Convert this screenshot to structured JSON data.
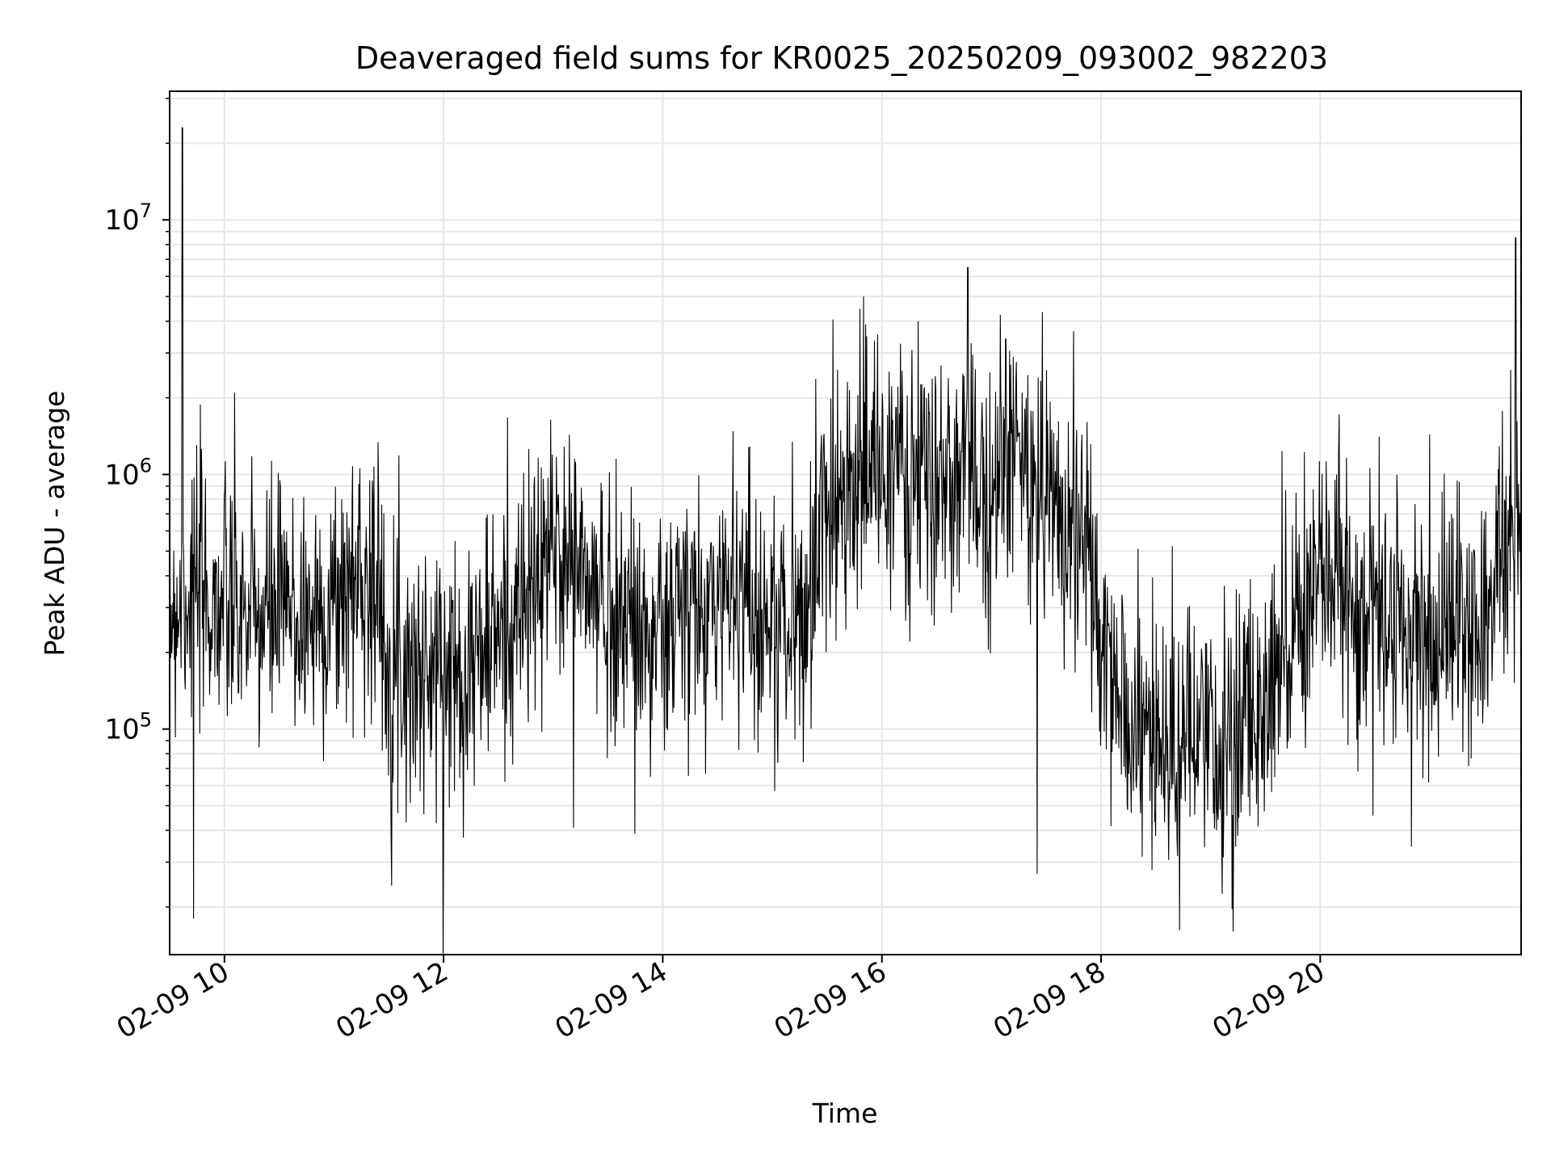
{
  "chart_data": {
    "type": "line",
    "title": "Deaveraged field sums for KR0025_20250209_093002_982203",
    "xlabel": "Time",
    "ylabel": "Peak ADU - average",
    "yscale": "log",
    "xlim": [
      "2025-02-09 09:30",
      "2025-02-09 21:50"
    ],
    "ylim": [
      13000,
      32000000
    ],
    "grid": true,
    "line_color": "#000000",
    "x_ticks": [
      "02-09 10",
      "02-09 12",
      "02-09 14",
      "02-09 16",
      "02-09 18",
      "02-09 20"
    ],
    "y_ticks": [
      {
        "value": 100000,
        "base": "10",
        "exp": "5"
      },
      {
        "value": 1000000,
        "base": "10",
        "exp": "6"
      },
      {
        "value": 10000000,
        "base": "10",
        "exp": "7"
      }
    ],
    "series": [
      {
        "x": [
          "2025-02-09 09:30",
          "2025-02-09 09:40",
          "2025-02-09 09:50",
          "2025-02-09 10:00",
          "2025-02-09 10:10",
          "2025-02-09 10:20",
          "2025-02-09 10:30",
          "2025-02-09 10:40",
          "2025-02-09 10:50",
          "2025-02-09 11:00",
          "2025-02-09 11:10",
          "2025-02-09 11:20",
          "2025-02-09 11:30",
          "2025-02-09 11:40",
          "2025-02-09 11:50",
          "2025-02-09 12:00",
          "2025-02-09 12:10",
          "2025-02-09 12:20",
          "2025-02-09 12:30",
          "2025-02-09 12:40",
          "2025-02-09 12:50",
          "2025-02-09 13:00",
          "2025-02-09 13:10",
          "2025-02-09 13:20",
          "2025-02-09 13:30",
          "2025-02-09 13:40",
          "2025-02-09 13:50",
          "2025-02-09 14:00",
          "2025-02-09 14:10",
          "2025-02-09 14:20",
          "2025-02-09 14:30",
          "2025-02-09 14:40",
          "2025-02-09 14:50",
          "2025-02-09 15:00",
          "2025-02-09 15:10",
          "2025-02-09 15:20",
          "2025-02-09 15:30",
          "2025-02-09 15:40",
          "2025-02-09 15:50",
          "2025-02-09 16:00",
          "2025-02-09 16:10",
          "2025-02-09 16:20",
          "2025-02-09 16:30",
          "2025-02-09 16:40",
          "2025-02-09 16:50",
          "2025-02-09 17:00",
          "2025-02-09 17:10",
          "2025-02-09 17:20",
          "2025-02-09 17:30",
          "2025-02-09 17:40",
          "2025-02-09 17:50",
          "2025-02-09 18:00",
          "2025-02-09 18:10",
          "2025-02-09 18:20",
          "2025-02-09 18:30",
          "2025-02-09 18:40",
          "2025-02-09 18:50",
          "2025-02-09 19:00",
          "2025-02-09 19:10",
          "2025-02-09 19:20",
          "2025-02-09 19:30",
          "2025-02-09 19:40",
          "2025-02-09 19:50",
          "2025-02-09 20:00",
          "2025-02-09 20:10",
          "2025-02-09 20:20",
          "2025-02-09 20:30",
          "2025-02-09 20:40",
          "2025-02-09 20:50",
          "2025-02-09 21:00",
          "2025-02-09 21:10",
          "2025-02-09 21:20",
          "2025-02-09 21:30",
          "2025-02-09 21:40",
          "2025-02-09 21:50"
        ],
        "y": [
          300000,
          350000,
          320000,
          300000,
          280000,
          260000,
          300000,
          270000,
          280000,
          300000,
          380000,
          420000,
          200000,
          180000,
          160000,
          170000,
          180000,
          200000,
          230000,
          280000,
          350000,
          520000,
          480000,
          350000,
          300000,
          280000,
          240000,
          220000,
          300000,
          260000,
          320000,
          420000,
          300000,
          250000,
          260000,
          300000,
          800000,
          1000000,
          900000,
          1100000,
          1000000,
          900000,
          850000,
          950000,
          900000,
          1000000,
          1200000,
          1000000,
          900000,
          700000,
          600000,
          200000,
          120000,
          100000,
          90000,
          85000,
          85000,
          80000,
          90000,
          100000,
          130000,
          260000,
          300000,
          350000,
          380000,
          300000,
          260000,
          250000,
          230000,
          250000,
          250000,
          260000,
          280000,
          550000,
          500000
        ]
      }
    ],
    "spikes": [
      {
        "x": "2025-02-09 09:37",
        "y": 23000000
      },
      {
        "x": "2025-02-09 09:43",
        "y": 18000
      },
      {
        "x": "2025-02-09 15:50",
        "y": 5000000
      },
      {
        "x": "2025-02-09 16:47",
        "y": 6500000
      },
      {
        "x": "2025-02-09 17:25",
        "y": 27000
      },
      {
        "x": "2025-02-09 21:47",
        "y": 8500000
      }
    ]
  }
}
